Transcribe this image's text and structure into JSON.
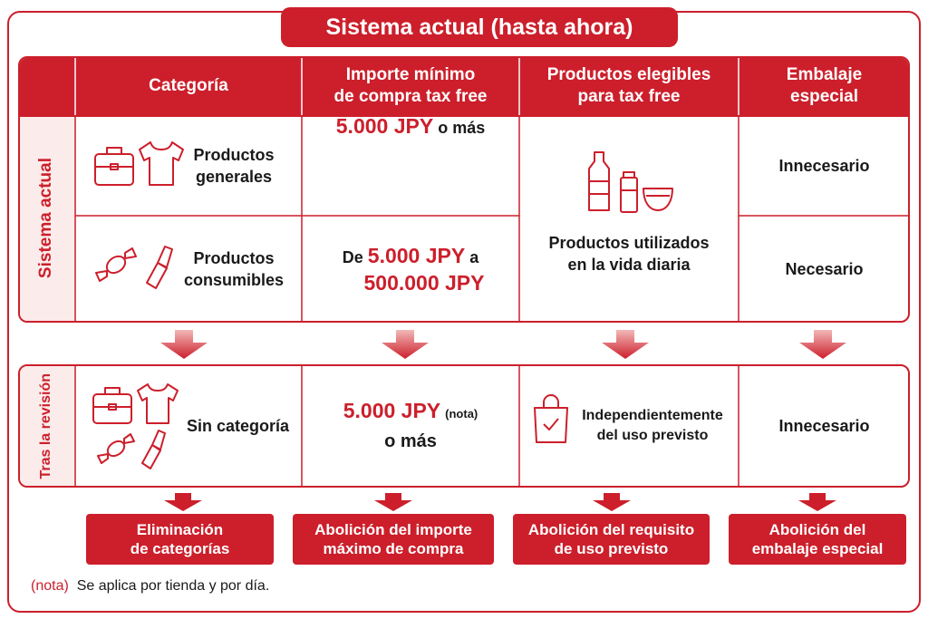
{
  "title": "Sistema actual (hasta ahora)",
  "headers": [
    [
      "Categoría"
    ],
    [
      "Importe mínimo",
      "de compra tax free"
    ],
    [
      "Productos elegibles",
      "para tax free"
    ],
    [
      "Embalaje",
      "especial"
    ]
  ],
  "current": {
    "label": "Sistema actual",
    "rows": [
      {
        "category": [
          "Productos",
          "generales"
        ],
        "minimum": [
          "5.000 JPY",
          "o más"
        ],
        "packaging": "Innecesario"
      },
      {
        "category": [
          "Productos",
          "consumibles"
        ],
        "minimum": [
          "De",
          "5.000 JPY",
          "a",
          "500.000 JPY"
        ],
        "packaging": "Necesario"
      }
    ],
    "eligible": [
      "Productos utilizados",
      "en la vida diaria"
    ]
  },
  "revised": {
    "label": "Tras la revisión",
    "category": "Sin categoría",
    "minimum": [
      "5.000 JPY",
      "(nota)",
      "o más"
    ],
    "eligible": [
      "Independientemente",
      "del uso previsto"
    ],
    "packaging": "Innecesario"
  },
  "changes": [
    [
      "Eliminación",
      "de categorías"
    ],
    [
      "Abolición del importe",
      "máximo de compra"
    ],
    [
      "Abolición del requisito",
      "de uso previsto"
    ],
    [
      "Abolición del",
      "embalaje especial"
    ]
  ],
  "note": {
    "marker": "(nota)",
    "text": "Se aplica por tienda y por día."
  }
}
